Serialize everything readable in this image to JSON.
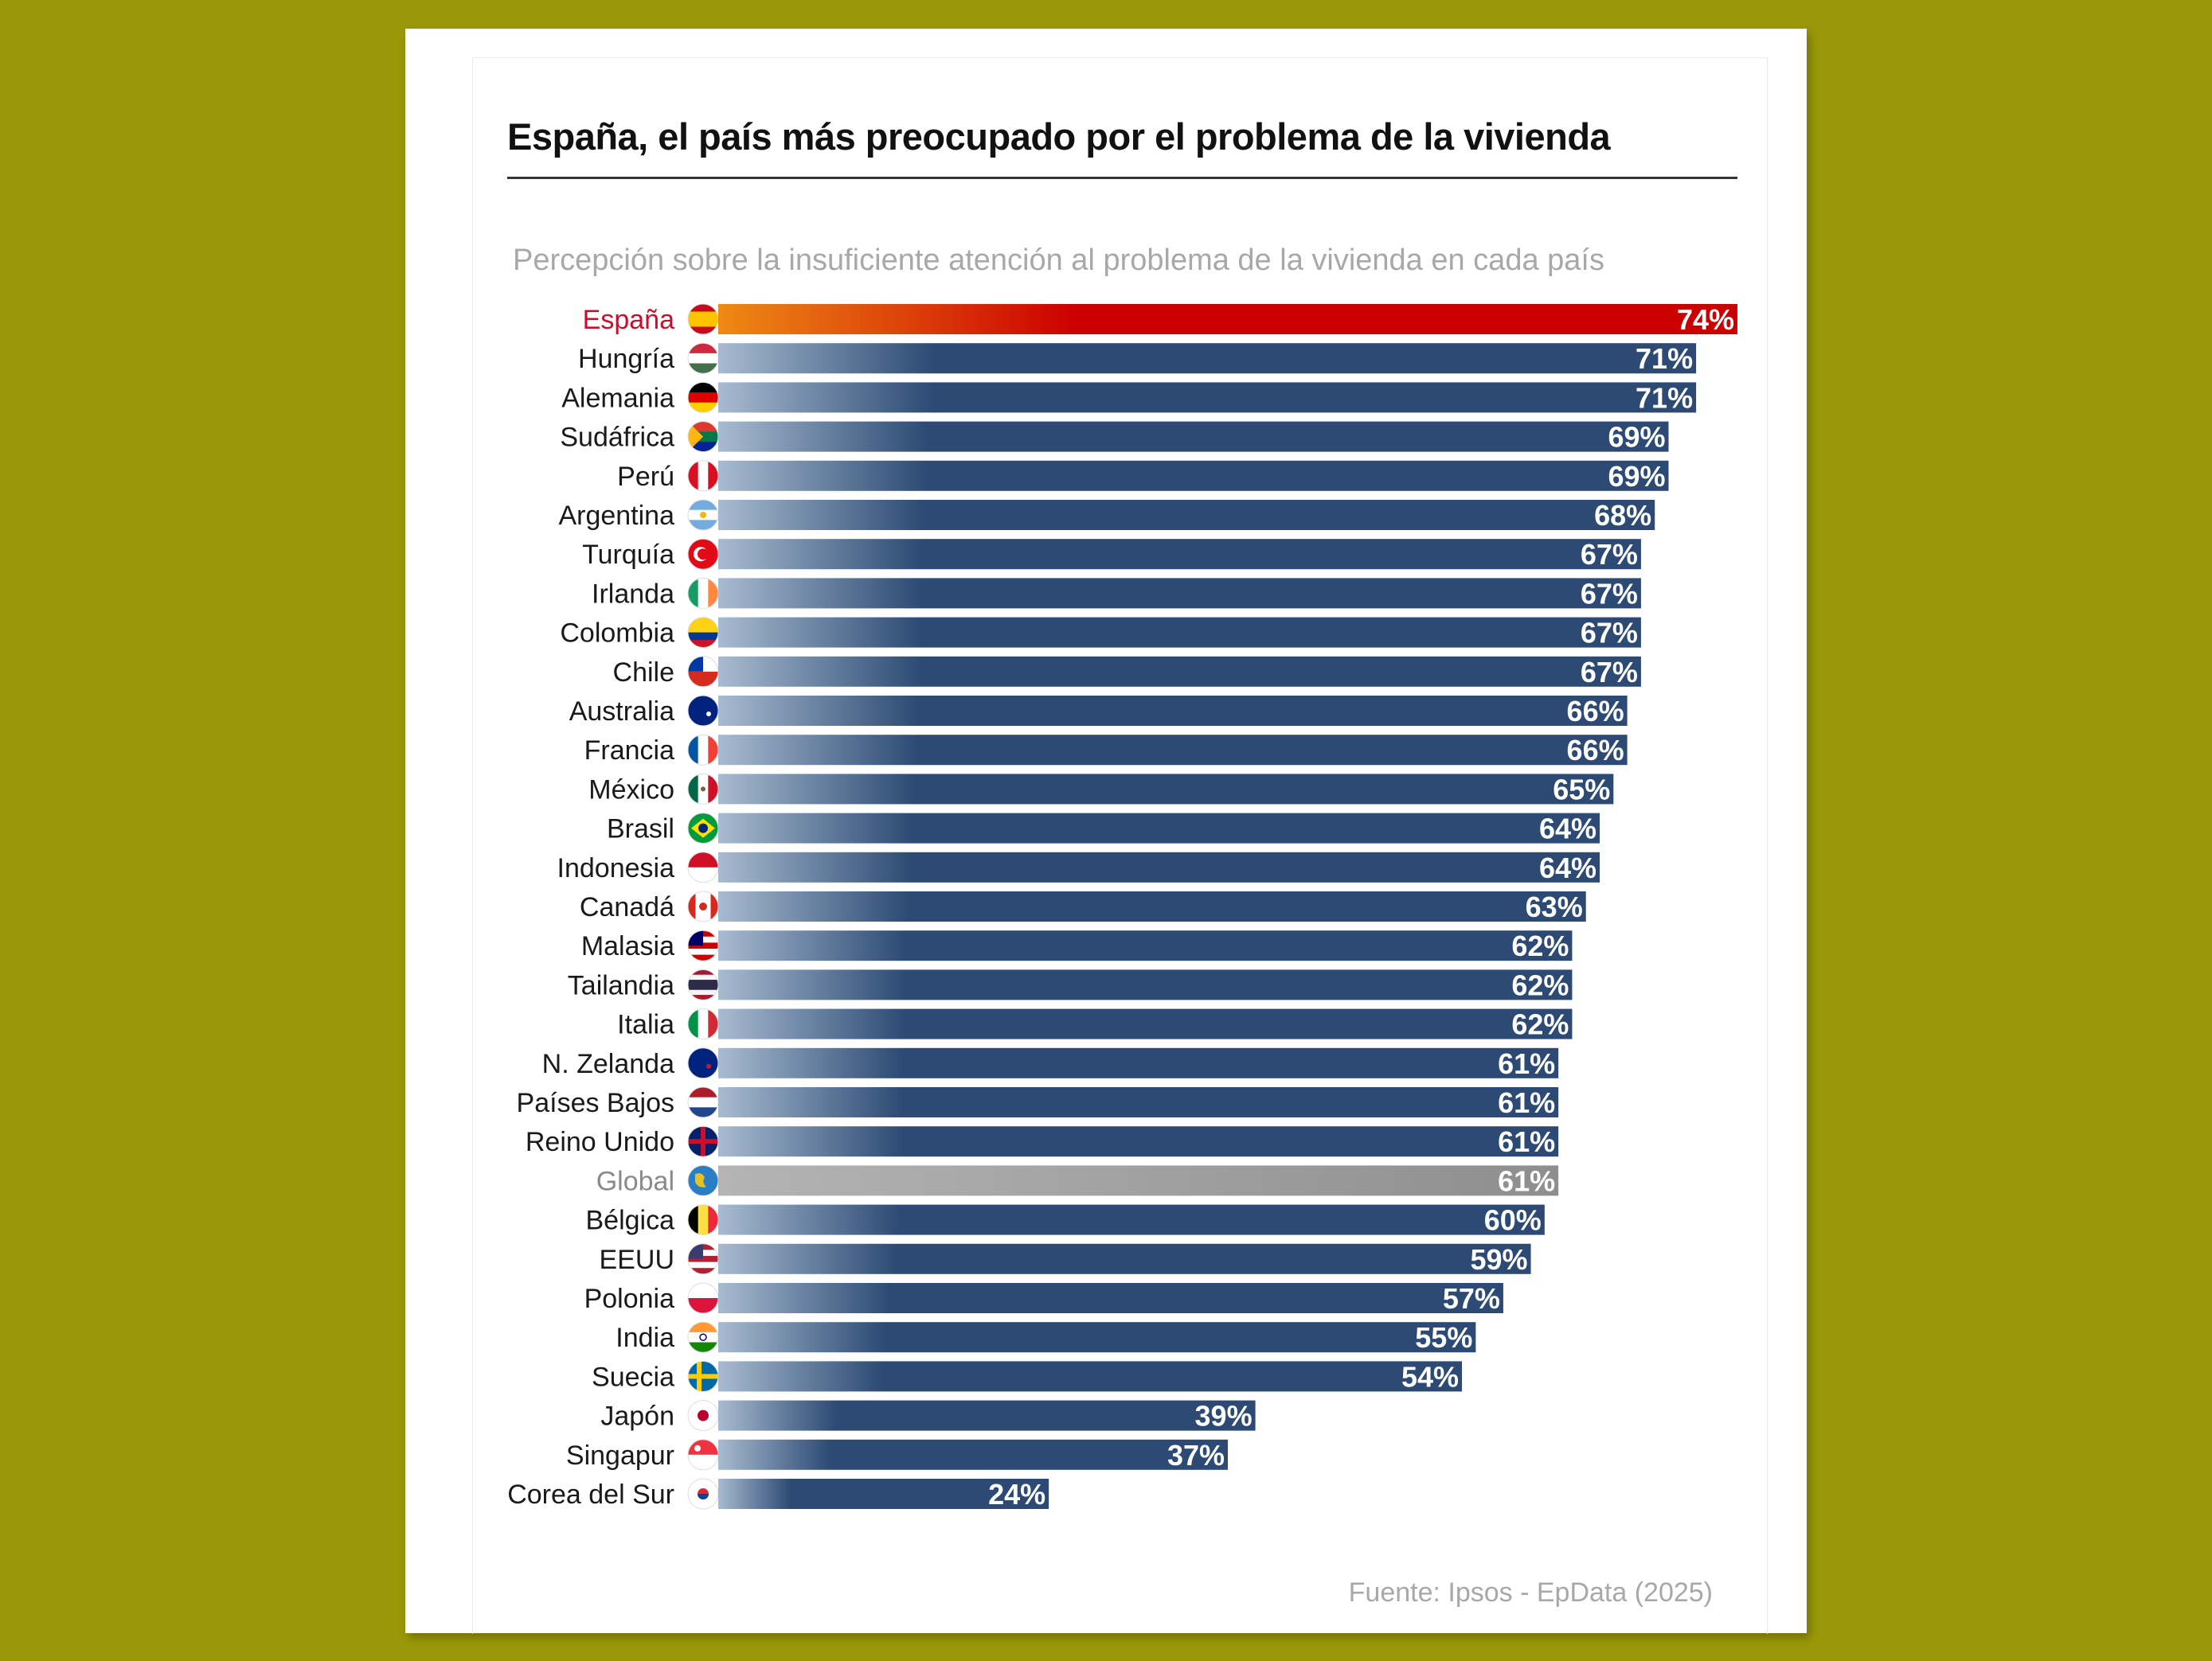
{
  "title": "España, el país más preocupado por el problema de la vivienda",
  "subtitle": "Percepción sobre la insuficiente atención al problema de la vivienda en cada país",
  "source": "Fuente: Ipsos - EpData (2025)",
  "colors": {
    "page_background": "#9a9808",
    "bar": "#2c4a74",
    "bar_fade": "#a8bbd0",
    "highlight_start": "#ee8a14",
    "highlight_end": "#cc0000",
    "highlight_label": "#c8102e",
    "global_bar": "#8e8e8e",
    "global_label": "#8a8a8a",
    "label": "#1a1a1a"
  },
  "chart_data": {
    "type": "bar",
    "orientation": "horizontal",
    "value_unit": "%",
    "xlim": [
      0,
      74
    ],
    "grid": false,
    "categories": [
      "España",
      "Hungría",
      "Alemania",
      "Sudáfrica",
      "Perú",
      "Argentina",
      "Turquía",
      "Irlanda",
      "Colombia",
      "Chile",
      "Australia",
      "Francia",
      "México",
      "Brasil",
      "Indonesia",
      "Canadá",
      "Malasia",
      "Tailandia",
      "Italia",
      "N. Zelanda",
      "Países Bajos",
      "Reino Unido",
      "Global",
      "Bélgica",
      "EEUU",
      "Polonia",
      "India",
      "Suecia",
      "Japón",
      "Singapur",
      "Corea del Sur"
    ],
    "values": [
      74,
      71,
      71,
      69,
      69,
      68,
      67,
      67,
      67,
      67,
      66,
      66,
      65,
      64,
      64,
      63,
      62,
      62,
      62,
      61,
      61,
      61,
      61,
      60,
      59,
      57,
      55,
      54,
      39,
      37,
      24
    ],
    "value_labels": [
      "74%",
      "71%",
      "71%",
      "69%",
      "69%",
      "68%",
      "67%",
      "67%",
      "67%",
      "67%",
      "66%",
      "66%",
      "65%",
      "64%",
      "64%",
      "63%",
      "62%",
      "62%",
      "62%",
      "61%",
      "61%",
      "61%",
      "61%",
      "60%",
      "59%",
      "57%",
      "55%",
      "54%",
      "39%",
      "37%",
      "24%"
    ],
    "highlight": "España",
    "reference": "Global",
    "flags": [
      "spain-flag-icon",
      "hungary-flag-icon",
      "germany-flag-icon",
      "south-africa-flag-icon",
      "peru-flag-icon",
      "argentina-flag-icon",
      "turkey-flag-icon",
      "ireland-flag-icon",
      "colombia-flag-icon",
      "chile-flag-icon",
      "australia-flag-icon",
      "france-flag-icon",
      "mexico-flag-icon",
      "brazil-flag-icon",
      "indonesia-flag-icon",
      "canada-flag-icon",
      "malaysia-flag-icon",
      "thailand-flag-icon",
      "italy-flag-icon",
      "new-zealand-flag-icon",
      "netherlands-flag-icon",
      "united-kingdom-flag-icon",
      "globe-icon",
      "belgium-flag-icon",
      "usa-flag-icon",
      "poland-flag-icon",
      "india-flag-icon",
      "sweden-flag-icon",
      "japan-flag-icon",
      "singapore-flag-icon",
      "south-korea-flag-icon"
    ]
  }
}
